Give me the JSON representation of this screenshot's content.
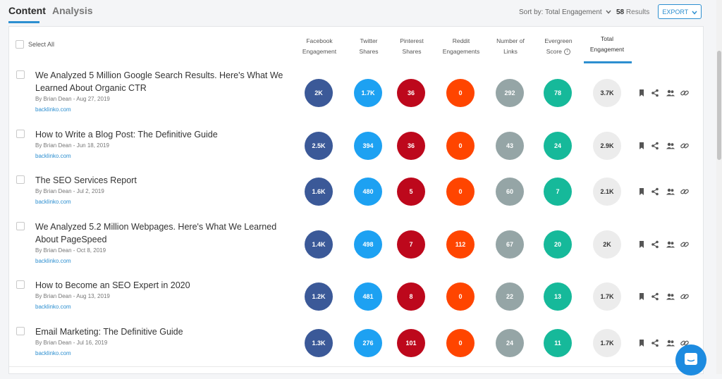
{
  "tabs": [
    {
      "label": "Content"
    },
    {
      "label": "Analysis"
    }
  ],
  "toolbar": {
    "sort_label": "Sort by: Total Engagement",
    "results_count": "58",
    "results_label": "Results",
    "export_label": "EXPORT"
  },
  "table": {
    "select_all_label": "Select All",
    "columns": {
      "facebook": [
        "Facebook",
        "Engagement"
      ],
      "twitter": [
        "Twitter",
        "Shares"
      ],
      "pinterest": [
        "Pinterest",
        "Shares"
      ],
      "reddit": [
        "Reddit",
        "Engagements"
      ],
      "links": [
        "Number of",
        "Links"
      ],
      "evergreen": [
        "Evergreen",
        "Score"
      ],
      "total": [
        "Total",
        "Engagement"
      ]
    },
    "rows": [
      {
        "title": "We Analyzed 5 Million Google Search Results. Here's What We Learned About Organic CTR",
        "meta": "By Brian Dean - Aug 27, 2019",
        "domain": "backlinko.com",
        "facebook": "2K",
        "twitter": "1.7K",
        "pinterest": "36",
        "reddit": "0",
        "links": "292",
        "evergreen": "78",
        "total": "3.7K"
      },
      {
        "title": "How to Write a Blog Post: The Definitive Guide",
        "meta": "By Brian Dean - Jun 18, 2019",
        "domain": "backlinko.com",
        "facebook": "2.5K",
        "twitter": "394",
        "pinterest": "36",
        "reddit": "0",
        "links": "43",
        "evergreen": "24",
        "total": "2.9K"
      },
      {
        "title": "The SEO Services Report",
        "meta": "By Brian Dean - Jul 2, 2019",
        "domain": "backlinko.com",
        "facebook": "1.6K",
        "twitter": "480",
        "pinterest": "5",
        "reddit": "0",
        "links": "60",
        "evergreen": "7",
        "total": "2.1K"
      },
      {
        "title": "We Analyzed 5.2 Million Webpages. Here's What We Learned About PageSpeed",
        "meta": "By Brian Dean - Oct 8, 2019",
        "domain": "backlinko.com",
        "facebook": "1.4K",
        "twitter": "498",
        "pinterest": "7",
        "reddit": "112",
        "links": "67",
        "evergreen": "20",
        "total": "2K"
      },
      {
        "title": "How to Become an SEO Expert in 2020",
        "meta": "By Brian Dean - Aug 13, 2019",
        "domain": "backlinko.com",
        "facebook": "1.2K",
        "twitter": "481",
        "pinterest": "8",
        "reddit": "0",
        "links": "22",
        "evergreen": "13",
        "total": "1.7K"
      },
      {
        "title": "Email Marketing: The Definitive Guide",
        "meta": "By Brian Dean - Jul 16, 2019",
        "domain": "backlinko.com",
        "facebook": "1.3K",
        "twitter": "276",
        "pinterest": "101",
        "reddit": "0",
        "links": "24",
        "evergreen": "11",
        "total": "1.7K"
      }
    ]
  },
  "icons": [
    "bookmark-icon",
    "share-icon",
    "users-icon",
    "link-icon",
    "info-icon",
    "chevron-down-icon",
    "chat-icon"
  ],
  "colors": {
    "accent": "#2d8fd0",
    "facebook": "#3b5998",
    "twitter": "#1da1f2",
    "pinterest": "#bd081c",
    "reddit": "#ff4500",
    "links": "#95a5a6",
    "evergreen": "#16b99a",
    "total": "#ececec"
  }
}
